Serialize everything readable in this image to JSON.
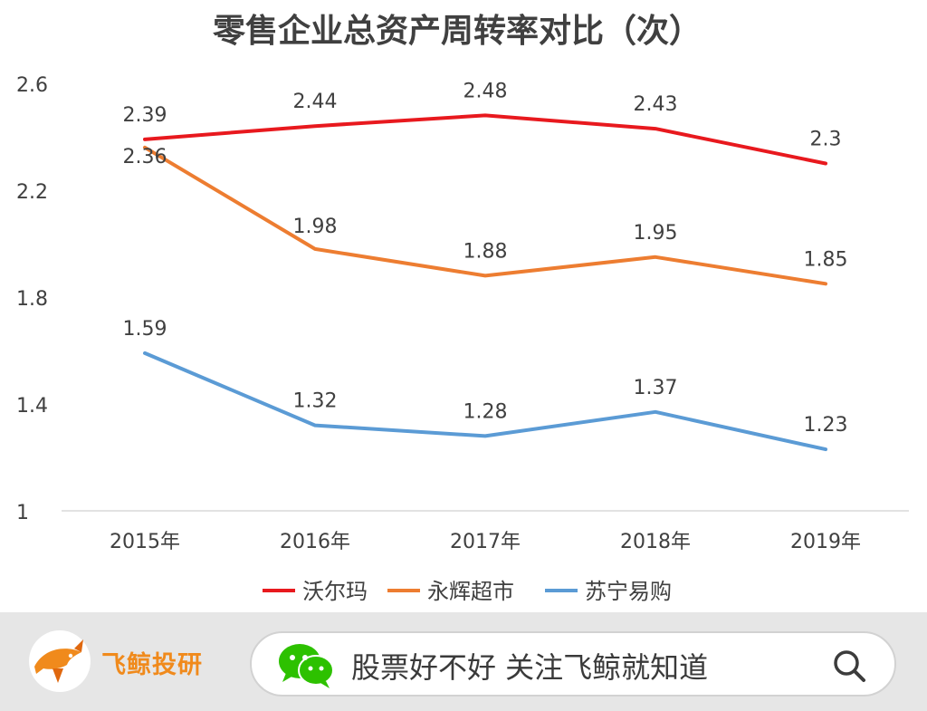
{
  "chart_data": {
    "type": "line",
    "title": "零售企业总资产周转率对比（次）",
    "categories": [
      "2015年",
      "2016年",
      "2017年",
      "2018年",
      "2019年"
    ],
    "y_ticks": [
      "2.6",
      "2.2",
      "1.8",
      "1.4",
      "1"
    ],
    "ylim": [
      1,
      2.6
    ],
    "grid": false,
    "legend_position": "bottom",
    "series": [
      {
        "name": "沃尔玛",
        "color": "#e8191e",
        "values": [
          2.39,
          2.44,
          2.48,
          2.43,
          2.3
        ],
        "labels": [
          "2.39",
          "2.44",
          "2.48",
          "2.43",
          "2.3"
        ]
      },
      {
        "name": "永辉超市",
        "color": "#ed7d31",
        "values": [
          2.36,
          1.98,
          1.88,
          1.95,
          1.85
        ],
        "labels": [
          "2.36",
          "1.98",
          "1.88",
          "1.95",
          "1.85"
        ]
      },
      {
        "name": "苏宁易购",
        "color": "#5b9bd5",
        "values": [
          1.59,
          1.32,
          1.28,
          1.37,
          1.23
        ],
        "labels": [
          "1.59",
          "1.32",
          "1.28",
          "1.37",
          "1.23"
        ]
      }
    ]
  },
  "footer": {
    "brand_name": "飞鲸投研",
    "search_text": "股票好不好 关注飞鲸就知道",
    "icons": [
      "whale-logo-icon",
      "wechat-icon",
      "search-icon"
    ],
    "colors": {
      "brand": "#f08a1c",
      "wechat": "#2dc100"
    }
  }
}
